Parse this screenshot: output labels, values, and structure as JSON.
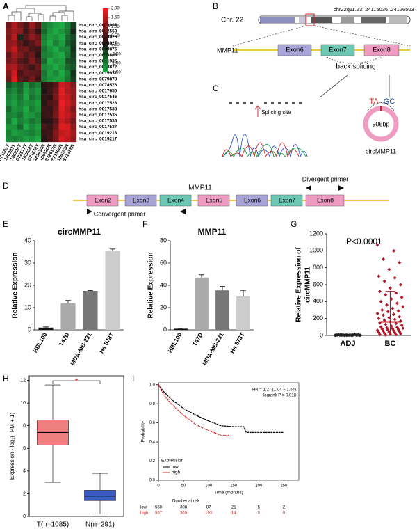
{
  "gene_diagram": {
    "letter": "B",
    "chromosome": "Chr. 22",
    "locus": "chr22q11.23: 24115036..24126503",
    "gene": "MMP11",
    "exons": [
      "Exon6",
      "Exon7",
      "Exon8"
    ],
    "note": "back splicing"
  },
  "junction_panel": {
    "letter": "C",
    "annotation": "Splicing site",
    "size": "906bp",
    "name": "circMMP11",
    "junction": [
      "TA",
      "GC"
    ]
  },
  "primer_diagram": {
    "letter": "D",
    "gene": "MMP11",
    "exons": [
      "Exon2",
      "Exon3",
      "Exon4",
      "Exon5",
      "Exon6",
      "Exon7",
      "Exon8"
    ],
    "primers": [
      "Divergent primer",
      "Convergent primer"
    ]
  },
  "chart_data": [
    {
      "type": "heatmap",
      "letter": "A",
      "rows": [
        "hsa_circ_0069094",
        "hsa_circ_0062558",
        "hsa_circ_0074026",
        "hsa_circ_0074027",
        "hsa_circ_0079876",
        "hsa_circ_0079866",
        "hsa_circ_0001925",
        "hsa_circ_0079872",
        "hsa_circ_0015977",
        "hsa_circ_0079878",
        "hsa_circ_0074576",
        "hsa_circ_0017650",
        "hsa_circ_0017546",
        "hsa_circ_0017528",
        "hsa_circ_0017538",
        "hsa_circ_0017535",
        "hsa_circ_0017536",
        "hsa_circ_0017537",
        "hsa_circ_0019218",
        "hsa_circ_0019217"
      ],
      "columns": [
        "S7150sT",
        "186293T",
        "186926T",
        "S72517T",
        "183434T",
        "S71278T",
        "183434N",
        "186926N",
        "S72517N",
        "S71504N",
        "186293N",
        "S71278N"
      ],
      "values": [
        [
          0.8,
          1.4,
          0.9,
          0.5,
          1.2,
          0.7,
          -0.9,
          -1.1,
          -1.3,
          -1.4,
          -1.0,
          -0.4
        ],
        [
          1.0,
          1.3,
          1.1,
          0.4,
          0.9,
          0.3,
          -0.8,
          -1.2,
          -1.4,
          -1.2,
          -0.9,
          -0.2
        ],
        [
          0.9,
          1.5,
          -0.2,
          0.6,
          1.1,
          0.8,
          -1.0,
          -1.3,
          -1.2,
          -1.4,
          -0.8,
          -0.5
        ],
        [
          1.1,
          1.2,
          0.7,
          0.3,
          0.6,
          1.0,
          -1.1,
          -1.4,
          -1.0,
          -1.3,
          -0.7,
          -0.4
        ],
        [
          1.2,
          1.6,
          0.8,
          0.9,
          0.5,
          0.4,
          -0.9,
          -1.2,
          -1.4,
          -1.1,
          -1.0,
          -0.3
        ],
        [
          0.7,
          1.3,
          1.0,
          0.6,
          0.8,
          0.2,
          -1.0,
          -1.1,
          -1.3,
          -1.4,
          -0.9,
          -0.4
        ],
        [
          0.9,
          1.1,
          0.6,
          0.4,
          1.0,
          0.5,
          -0.8,
          -1.4,
          -1.2,
          -1.3,
          -0.6,
          -0.5
        ],
        [
          1.3,
          1.4,
          0.9,
          0.7,
          0.4,
          0.8,
          -1.1,
          -1.2,
          -1.4,
          -1.2,
          -0.8,
          -0.6
        ],
        [
          1.0,
          1.7,
          0.5,
          0.8,
          0.7,
          0.6,
          -0.9,
          -1.3,
          -1.1,
          -1.4,
          -1.0,
          -0.3
        ],
        [
          0.8,
          1.9,
          0.7,
          0.5,
          0.9,
          0.4,
          -1.0,
          -1.2,
          -1.3,
          -1.3,
          -0.9,
          -0.4
        ],
        [
          -0.6,
          -0.9,
          -0.7,
          -1.2,
          -0.8,
          -1.0,
          0.2,
          0.3,
          0.6,
          1.7,
          1.5,
          1.0
        ],
        [
          -0.9,
          -1.1,
          -0.8,
          -1.3,
          -1.0,
          -1.2,
          0.1,
          0.4,
          0.8,
          1.9,
          1.4,
          1.2
        ],
        [
          -1.0,
          -1.2,
          -0.9,
          -1.4,
          -0.9,
          -1.1,
          0.3,
          0.2,
          0.9,
          1.8,
          1.6,
          1.1
        ],
        [
          -1.1,
          -1.3,
          -1.0,
          -1.2,
          -1.1,
          -1.3,
          0.2,
          0.5,
          0.7,
          2.0,
          1.7,
          1.3
        ],
        [
          -0.8,
          -1.2,
          -1.1,
          -1.4,
          -1.0,
          -1.2,
          0.4,
          0.3,
          0.8,
          1.9,
          1.5,
          1.0
        ],
        [
          -1.0,
          -1.1,
          -0.9,
          -1.3,
          -1.2,
          -1.0,
          0.3,
          0.4,
          0.9,
          1.8,
          1.6,
          1.2
        ],
        [
          -0.9,
          -1.4,
          -1.0,
          -1.2,
          -0.9,
          -1.1,
          0.2,
          0.2,
          0.6,
          1.7,
          1.4,
          0.9
        ],
        [
          -1.2,
          -1.2,
          -0.8,
          -1.4,
          -1.1,
          -1.3,
          0.5,
          0.3,
          0.8,
          1.9,
          1.8,
          1.1
        ],
        [
          -1.0,
          -1.3,
          -1.2,
          -1.1,
          -1.0,
          -1.2,
          0.3,
          0.4,
          1.0,
          1.6,
          1.7,
          1.3
        ],
        [
          -1.1,
          -1.0,
          -1.1,
          -1.3,
          -1.2,
          -1.4,
          0.2,
          0.5,
          0.9,
          1.8,
          1.6,
          1.2
        ]
      ],
      "clim": [
        -1.5,
        2
      ],
      "cticks": [
        {
          "value": 2,
          "label": "2.00"
        },
        {
          "value": 1.5,
          "label": "1.50"
        },
        {
          "value": 1,
          "label": "1.00"
        },
        {
          "value": 0.5,
          "label": "0.50"
        },
        {
          "value": 0,
          "label": "0.00"
        },
        {
          "value": -0.5,
          "label": "-0.50"
        },
        {
          "value": -1,
          "label": "-1.00"
        },
        {
          "value": -1.5,
          "label": "-1.50"
        }
      ]
    },
    {
      "type": "bar",
      "letter": "E",
      "title": "circMMP11",
      "y_label": "Relative Expression",
      "categories": [
        "HBL100",
        "T47D",
        "MDA-MB-231",
        "Hs 578T"
      ],
      "values": [
        1,
        12,
        17.5,
        35.5
      ],
      "errors": [
        0.3,
        1.2,
        0.2,
        0.8
      ],
      "colors": [
        "#111111",
        "#aaaaaa",
        "#777777",
        "#cccccc"
      ],
      "ylim": [
        0,
        40
      ],
      "yticks": [
        0,
        10,
        20,
        30,
        40
      ]
    },
    {
      "type": "bar",
      "letter": "F",
      "title": "MMP11",
      "y_label": "Relative Expression",
      "categories": [
        "HBL100",
        "T47D",
        "MDA-MB-231",
        "Hs 578T"
      ],
      "values": [
        1,
        47,
        35.5,
        30
      ],
      "errors": [
        0.3,
        2.5,
        3.5,
        5.5
      ],
      "colors": [
        "#111111",
        "#aaaaaa",
        "#777777",
        "#cccccc"
      ],
      "ylim": [
        0,
        80
      ],
      "yticks": [
        0,
        20,
        40,
        60,
        80
      ]
    },
    {
      "type": "strip",
      "letter": "G",
      "annotation": "P<0.0001",
      "y_label": [
        "Relative Expression of",
        "circMMP11"
      ],
      "ylim": [
        0,
        1200
      ],
      "yticks": [
        0,
        200,
        400,
        600,
        800,
        1000,
        1200
      ],
      "series": [
        {
          "name": "ADJ",
          "color": "#222222",
          "mean": 4,
          "sd": 3,
          "values": [
            1,
            2,
            3,
            4,
            5,
            6,
            2,
            3,
            8,
            1,
            4,
            5,
            7,
            2,
            3,
            9,
            12,
            1,
            2,
            6,
            3,
            4,
            5,
            2,
            1,
            15,
            3,
            2,
            4,
            6
          ]
        },
        {
          "name": "BC",
          "color": "#b0182a",
          "mean": 160,
          "sd": 360,
          "values": [
            1070,
            1000,
            900,
            860,
            780,
            700,
            680,
            640,
            600,
            560,
            520,
            500,
            480,
            450,
            430,
            400,
            380,
            360,
            340,
            320,
            300,
            290,
            280,
            260,
            250,
            240,
            220,
            210,
            200,
            190,
            180,
            170,
            160,
            150,
            140,
            130,
            120,
            110,
            100,
            95,
            90,
            85,
            80,
            75,
            70,
            65,
            60,
            55,
            50,
            45,
            40,
            35,
            30,
            25,
            20,
            15,
            10,
            8,
            5
          ]
        }
      ]
    },
    {
      "type": "box",
      "letter": "H",
      "y_label": "Expression - log₂(TPM + 1)",
      "annotation": "*",
      "ylim": [
        0,
        12.4
      ],
      "yticks": [
        0,
        2,
        4,
        6,
        8,
        10,
        12
      ],
      "series": [
        {
          "name": "T(n=1085)",
          "color": "#f08080",
          "low": 3.0,
          "q1": 6.3,
          "median": 7.4,
          "q3": 8.5,
          "high": 11.6
        },
        {
          "name": "N(n=291)",
          "color": "#3b5bbf",
          "low": 0.2,
          "q1": 1.4,
          "median": 1.8,
          "q3": 2.3,
          "high": 3.8
        }
      ]
    },
    {
      "type": "line",
      "letter": "I",
      "annotations": [
        "HR = 1.27 (1.04 − 1.54)",
        "logrank P = 0.018"
      ],
      "x_label": "Time (months)",
      "y_label": "Probability",
      "legend_title": "Expression",
      "xlim": [
        0,
        280
      ],
      "xticks": [
        0,
        50,
        100,
        150,
        200,
        250
      ],
      "ylim": [
        0,
        1.02
      ],
      "yticks": [
        {
          "value": 0,
          "label": "0.0"
        },
        0.2,
        0.4,
        0.6,
        0.8,
        {
          "value": 1,
          "label": "1.0"
        }
      ],
      "series": [
        {
          "name": "low",
          "color": "#000000",
          "x": [
            0,
            10,
            25,
            50,
            75,
            100,
            125,
            150,
            170,
            175,
            250
          ],
          "values": [
            1,
            0.93,
            0.85,
            0.75,
            0.68,
            0.62,
            0.57,
            0.56,
            0.56,
            0.5,
            0.5
          ]
        },
        {
          "name": "high",
          "color": "#e02020",
          "x": [
            0,
            10,
            25,
            50,
            75,
            100,
            125,
            140
          ],
          "values": [
            1,
            0.9,
            0.8,
            0.68,
            0.58,
            0.52,
            0.47,
            0.47
          ]
        }
      ],
      "risk_title": "Number at risk",
      "risk": [
        [
          568,
          308,
          87,
          21,
          5,
          2
        ],
        [
          567,
          305,
          103,
          14,
          0,
          0
        ]
      ]
    }
  ]
}
